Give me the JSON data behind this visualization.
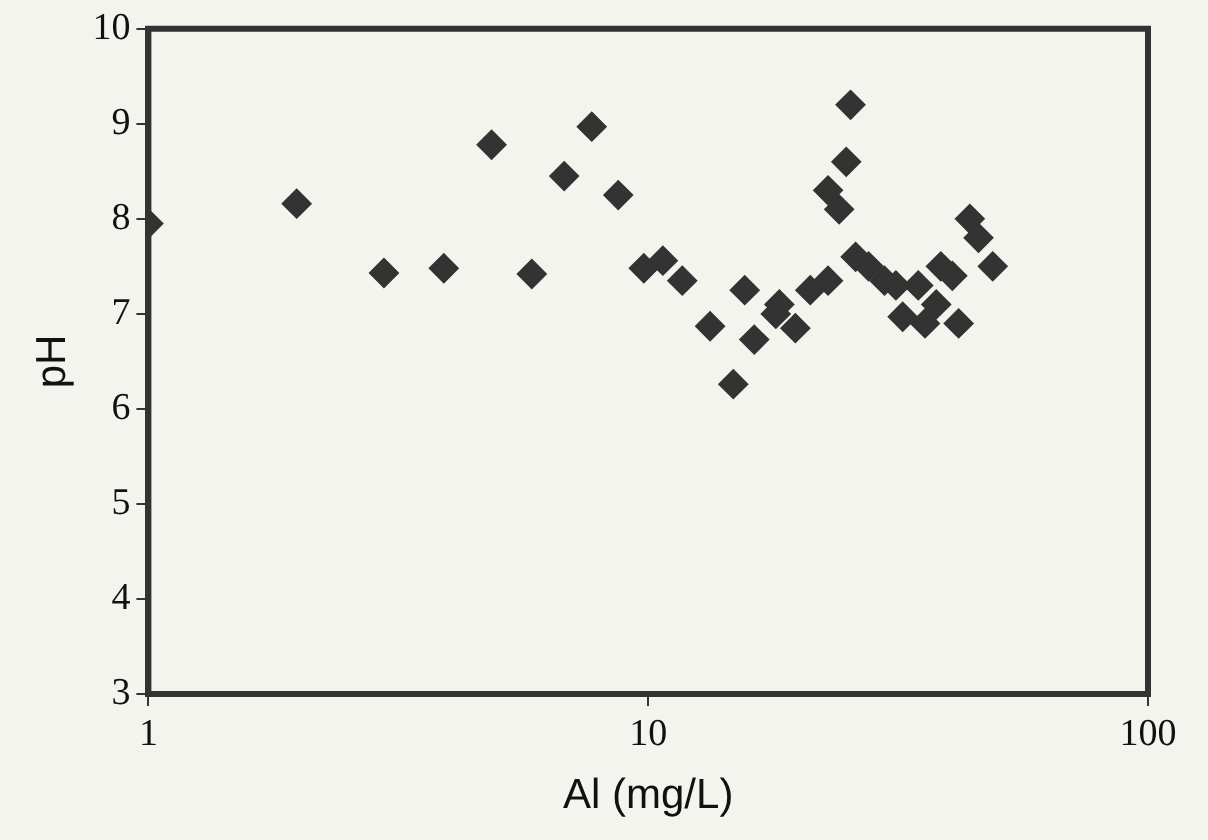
{
  "chart_data": {
    "type": "scatter",
    "xlabel": "Al (mg/L)",
    "ylabel": "pH",
    "log": "x",
    "xlim": [
      1,
      100
    ],
    "xticks": [
      1,
      10,
      100
    ],
    "ylim": [
      3,
      10
    ],
    "yticks": [
      3,
      4,
      5,
      6,
      7,
      8,
      9,
      10
    ],
    "grid": false,
    "legend": false,
    "marker": "diamond",
    "series": [
      {
        "color": "#333333",
        "x": [
          1,
          1.98,
          2.96,
          3.9,
          4.86,
          5.85,
          6.79,
          7.71,
          8.71,
          9.8,
          10.7,
          11.7,
          13.3,
          14.8,
          15.6,
          16.3,
          18.0,
          18.3,
          19.7,
          21.1,
          22.9,
          22.9,
          24.1,
          24.9,
          25.4,
          26,
          27.6,
          29.7,
          31.3,
          32.3,
          34.7,
          35.8,
          37.7,
          38.5,
          40.6,
          41.8,
          44,
          45.8,
          48.9
        ],
        "values": [
          7.95,
          8.16,
          7.43,
          7.48,
          8.78,
          7.42,
          8.45,
          8.97,
          8.25,
          7.48,
          7.56,
          7.35,
          6.87,
          6.26,
          7.25,
          6.73,
          7.0,
          7.1,
          6.85,
          7.25,
          7.35,
          8.3,
          8.1,
          8.6,
          9.2,
          7.6,
          7.5,
          7.35,
          7.3,
          6.97,
          7.3,
          6.9,
          7.1,
          7.5,
          7.4,
          6.9,
          8.0,
          7.8,
          7.5
        ]
      }
    ]
  }
}
